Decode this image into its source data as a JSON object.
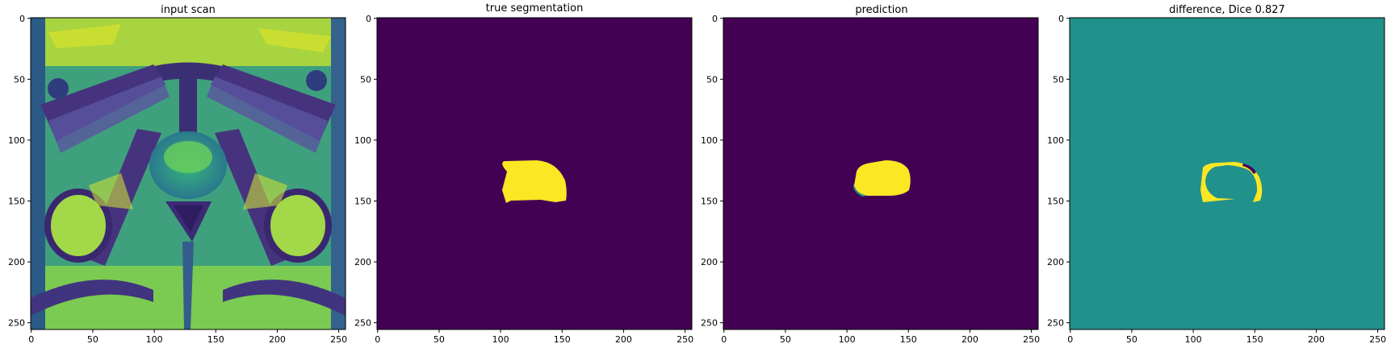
{
  "colors": {
    "viridis_low": "#440154",
    "viridis_mid": "#21918c",
    "viridis_high": "#fde725",
    "scan_green": "#4cc26c",
    "scan_teal": "#2a788e",
    "scan_dark": "#3b528b"
  },
  "chart_data": [
    {
      "type": "heatmap",
      "title": "input scan",
      "content": "grayscale MRI pelvic slice rendered with viridis colormap",
      "xlim": [
        0,
        255
      ],
      "ylim": [
        255,
        0
      ],
      "xticks": [
        0,
        50,
        100,
        150,
        200,
        250
      ],
      "yticks": [
        0,
        50,
        100,
        150,
        200,
        250
      ],
      "grid": false
    },
    {
      "type": "heatmap",
      "title": "true segmentation",
      "content": "binary mask",
      "background_value": 0,
      "mask_value": 1,
      "mask_extent": {
        "x": [
          102,
          155
        ],
        "y": [
          118,
          150
        ]
      },
      "xlim": [
        0,
        255
      ],
      "ylim": [
        255,
        0
      ],
      "xticks": [
        0,
        50,
        100,
        150,
        200,
        250
      ],
      "yticks": [
        0,
        50,
        100,
        150,
        200,
        250
      ],
      "grid": false
    },
    {
      "type": "heatmap",
      "title": "prediction",
      "content": "predicted mask",
      "background_value": 0,
      "mask_value": 1,
      "mask_extent": {
        "x": [
          105,
          151
        ],
        "y": [
          117,
          145
        ]
      },
      "xlim": [
        0,
        255
      ],
      "ylim": [
        255,
        0
      ],
      "xticks": [
        0,
        50,
        100,
        150,
        200,
        250
      ],
      "yticks": [
        0,
        50,
        100,
        150,
        200,
        250
      ],
      "grid": false
    },
    {
      "type": "heatmap",
      "title": "difference, Dice 0.827",
      "content": "true minus prediction",
      "background_value": 0,
      "positive_value": 1,
      "negative_value": -1,
      "xlim": [
        0,
        255
      ],
      "ylim": [
        255,
        0
      ],
      "xticks": [
        0,
        50,
        100,
        150,
        200,
        250
      ],
      "yticks": [
        0,
        50,
        100,
        150,
        200,
        250
      ],
      "grid": false
    }
  ]
}
